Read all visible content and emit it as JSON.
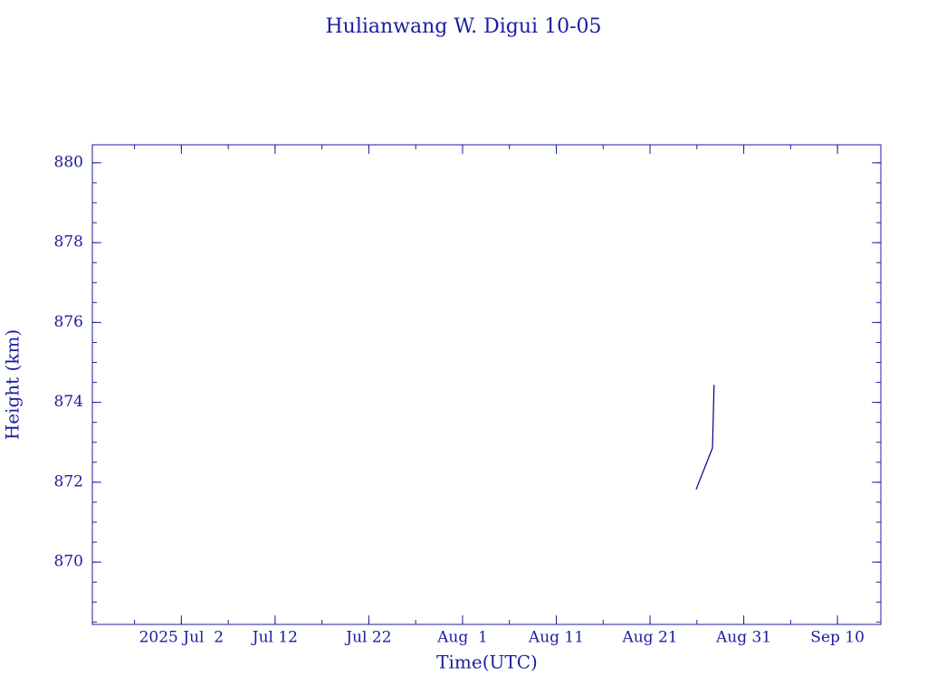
{
  "chart_data": {
    "type": "line",
    "title": "Hulianwang W. Digui 10-05",
    "x_label": "Time(UTC)",
    "y_label": "Height (km)",
    "x": [
      "2025-08-25T22:00",
      "2025-08-27T16:00",
      "2025-08-27T20:00"
    ],
    "series": [
      {
        "color": "#000080",
        "values": [
          871.82,
          872.86,
          874.44
        ]
      }
    ],
    "xlim": [
      "2025-06-22T12:00",
      "2025-09-14T15:00"
    ],
    "xticks": [
      {
        "value": "2025-07-02T00:00",
        "label": "2025 Jul  2"
      },
      {
        "value": "2025-07-12T00:00",
        "label": "Jul 12"
      },
      {
        "value": "2025-07-22T00:00",
        "label": "Jul 22"
      },
      {
        "value": "2025-08-01T00:00",
        "label": "Aug  1"
      },
      {
        "value": "2025-08-11T00:00",
        "label": "Aug 11"
      },
      {
        "value": "2025-08-21T00:00",
        "label": "Aug 21"
      },
      {
        "value": "2025-08-31T00:00",
        "label": "Aug 31"
      },
      {
        "value": "2025-09-10T00:00",
        "label": "Sep 10"
      }
    ],
    "ylim": [
      868.44,
      880.45
    ],
    "yticks": [
      870,
      872,
      874,
      876,
      878,
      880
    ]
  }
}
